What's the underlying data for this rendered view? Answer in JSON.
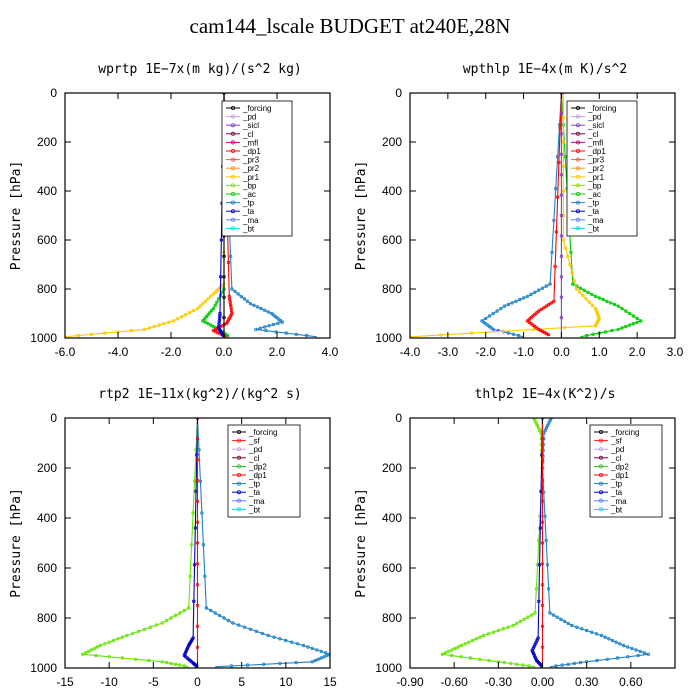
{
  "title": "cam144_lscale  BUDGET at240E,28N",
  "chart_data": [
    {
      "type": "line",
      "title": "wprtp  1E−7x(m kg)/(s^2 kg)",
      "ylabel": "Pressure [hPa]",
      "xlim": [
        -6.0,
        4.0
      ],
      "ylim": [
        1000,
        0
      ],
      "xticks": [
        -6,
        -4,
        -2,
        0,
        2,
        4
      ],
      "xtick_labels": [
        "-6.0",
        "-4.0",
        "-2.0",
        "0.0",
        "2.0",
        "4.0"
      ],
      "yticks": [
        0,
        200,
        400,
        600,
        800,
        1000
      ],
      "ytick_labels": [
        "0",
        "200",
        "400",
        "600",
        "800",
        "1000"
      ],
      "legend_position": "top-right",
      "legend": [
        "_forcing",
        "_pd",
        "_sicl",
        "_cl",
        "_mfl",
        "_dp1",
        "_pr3",
        "_pr2",
        "_pr1",
        "_bp",
        "_ac",
        "_tp",
        "_ta",
        "_ma",
        "_bt"
      ],
      "series": [
        {
          "name": "_pr1",
          "color": "#ffc800",
          "x": [
            0,
            0,
            -0.4,
            -1.0,
            -1.9,
            -3.0,
            -6.0
          ],
          "y": [
            0,
            780,
            820,
            880,
            930,
            965,
            995
          ]
        },
        {
          "name": "_ac",
          "color": "#00c800",
          "x": [
            0,
            0,
            -0.4,
            -0.8,
            -0.2,
            0.2
          ],
          "y": [
            0,
            800,
            880,
            930,
            965,
            995
          ]
        },
        {
          "name": "_tp",
          "color": "#1e82c8",
          "x": [
            0,
            0.3,
            1.0,
            1.8,
            2.2,
            1.2,
            3.5
          ],
          "y": [
            0,
            800,
            860,
            900,
            935,
            965,
            995
          ]
        },
        {
          "name": "_dp1",
          "color": "#ff0000",
          "x": [
            0,
            0.2,
            0.3,
            0.1,
            -0.4,
            0.1
          ],
          "y": [
            0,
            830,
            900,
            940,
            970,
            995
          ]
        },
        {
          "name": "_ta",
          "color": "#0000c8",
          "x": [
            0,
            -0.15,
            -0.2,
            0
          ],
          "y": [
            0,
            900,
            960,
            995
          ]
        },
        {
          "name": "_forcing",
          "color": "#000000",
          "x": [
            0,
            0,
            0
          ],
          "y": [
            0,
            500,
            1000
          ]
        }
      ]
    },
    {
      "type": "line",
      "title": "wpthlp  1E−4x(m K)/s^2",
      "ylabel": "Pressure [hPa]",
      "xlim": [
        -4.0,
        3.0
      ],
      "ylim": [
        1000,
        0
      ],
      "xticks": [
        -4,
        -3,
        -2,
        -1,
        0,
        1,
        2,
        3
      ],
      "xtick_labels": [
        "-4.0",
        "-3.0",
        "-2.0",
        "-1.0",
        "0.0",
        "1.0",
        "2.0",
        "3.0"
      ],
      "yticks": [
        0,
        200,
        400,
        600,
        800,
        1000
      ],
      "ytick_labels": [
        "0",
        "200",
        "400",
        "600",
        "800",
        "1000"
      ],
      "legend_position": "top-right",
      "legend": [
        "_forcing",
        "_pd",
        "_sicl",
        "_cl",
        "_mfl",
        "_dp1",
        "_pr3",
        "_pr2",
        "_pr1",
        "_bp",
        "_ac",
        "_tp",
        "_ta",
        "_ma",
        "_bt"
      ],
      "series": [
        {
          "name": "_tp",
          "color": "#1e82c8",
          "x": [
            0,
            -0.3,
            -0.9,
            -1.5,
            -2.1,
            -1.8,
            -1.0
          ],
          "y": [
            0,
            780,
            830,
            870,
            930,
            965,
            995
          ]
        },
        {
          "name": "_ac",
          "color": "#00c800",
          "x": [
            0,
            0.3,
            0.9,
            1.5,
            2.1,
            1.5,
            0.5
          ],
          "y": [
            0,
            780,
            830,
            870,
            930,
            965,
            995
          ]
        },
        {
          "name": "_pr1",
          "color": "#ffc800",
          "x": [
            0.05,
            0.05,
            0.4,
            0.9,
            1.0,
            0.9,
            -4.0
          ],
          "y": [
            0,
            600,
            800,
            880,
            920,
            950,
            995
          ]
        },
        {
          "name": "_dp1",
          "color": "#ff0000",
          "x": [
            0,
            -0.2,
            -0.6,
            -0.9,
            -0.6,
            -0.3
          ],
          "y": [
            0,
            850,
            890,
            930,
            965,
            990
          ]
        },
        {
          "name": "_sicl",
          "color": "#8040c0",
          "x": [
            0,
            0,
            0
          ],
          "y": [
            0,
            500,
            1000
          ]
        }
      ]
    },
    {
      "type": "line",
      "title": "rtp2  1E−11x(kg^2)/(kg^2 s)",
      "ylabel": "Pressure [hPa]",
      "xlim": [
        -15,
        15
      ],
      "ylim": [
        1000,
        0
      ],
      "xticks": [
        -15,
        -10,
        -5,
        0,
        5,
        10,
        15
      ],
      "xtick_labels": [
        "-15",
        "-10",
        "-5",
        "0",
        "5",
        "10",
        "15"
      ],
      "yticks": [
        0,
        200,
        400,
        600,
        800,
        1000
      ],
      "ytick_labels": [
        "0",
        "200",
        "400",
        "600",
        "800",
        "1000"
      ],
      "legend_position": "top-right",
      "legend": [
        "_forcing",
        "_sf",
        "_pd",
        "_cl",
        "_dp2",
        "_dp1",
        "_tp",
        "_ta",
        "_ma",
        "_bt"
      ],
      "series": [
        {
          "name": "_dp1",
          "color": "#66e600",
          "x": [
            0,
            -1,
            -4,
            -8,
            -11,
            -13,
            -4,
            -1
          ],
          "y": [
            0,
            760,
            820,
            870,
            910,
            945,
            975,
            995
          ]
        },
        {
          "name": "_tp",
          "color": "#1e82c8",
          "x": [
            0,
            1,
            4,
            8,
            12,
            15,
            13,
            2
          ],
          "y": [
            0,
            760,
            820,
            870,
            910,
            945,
            975,
            995
          ]
        },
        {
          "name": "_ta",
          "color": "#0000c8",
          "x": [
            0,
            -0.5,
            -1,
            -1.5,
            -0.5,
            0
          ],
          "y": [
            0,
            880,
            910,
            950,
            980,
            995
          ]
        },
        {
          "name": "_forcing",
          "color": "#e81010",
          "x": [
            0,
            0,
            0
          ],
          "y": [
            0,
            500,
            1000
          ]
        }
      ]
    },
    {
      "type": "line",
      "title": "thlp2  1E−4x(K^2)/s",
      "ylabel": "Pressure [hPa]",
      "xlim": [
        -0.9,
        0.9
      ],
      "ylim": [
        1000,
        0
      ],
      "xticks": [
        -0.9,
        -0.6,
        -0.3,
        0.0,
        0.3,
        0.6
      ],
      "xtick_labels": [
        "-0.90",
        "-0.60",
        "-0.30",
        "0.00",
        "0.30",
        "0.60"
      ],
      "yticks": [
        0,
        200,
        400,
        600,
        800,
        1000
      ],
      "ytick_labels": [
        "0",
        "200",
        "400",
        "600",
        "800",
        "1000"
      ],
      "legend_position": "top-right",
      "legend": [
        "_forcing",
        "_sf",
        "_pd",
        "_cl",
        "_dp2",
        "_dp1",
        "_tp",
        "_ta",
        "_ma",
        "_bt"
      ],
      "series": [
        {
          "name": "_dp1",
          "color": "#66e600",
          "x": [
            -0.06,
            -0.01,
            0,
            -0.05,
            -0.2,
            -0.4,
            -0.55,
            -0.68,
            -0.3,
            -0.05
          ],
          "y": [
            0,
            60,
            200,
            780,
            830,
            870,
            910,
            945,
            975,
            995
          ]
        },
        {
          "name": "_tp",
          "color": "#1e82c8",
          "x": [
            0.06,
            0.01,
            0,
            0.05,
            0.2,
            0.4,
            0.55,
            0.72,
            0.3,
            0.05
          ],
          "y": [
            0,
            60,
            200,
            780,
            830,
            870,
            910,
            945,
            975,
            995
          ]
        },
        {
          "name": "_ta",
          "color": "#0000c8",
          "x": [
            0,
            -0.03,
            -0.07,
            -0.04,
            0
          ],
          "y": [
            0,
            880,
            930,
            970,
            995
          ]
        },
        {
          "name": "_forcing",
          "color": "#e81010",
          "x": [
            0,
            0,
            0
          ],
          "y": [
            0,
            500,
            1000
          ]
        }
      ]
    }
  ]
}
